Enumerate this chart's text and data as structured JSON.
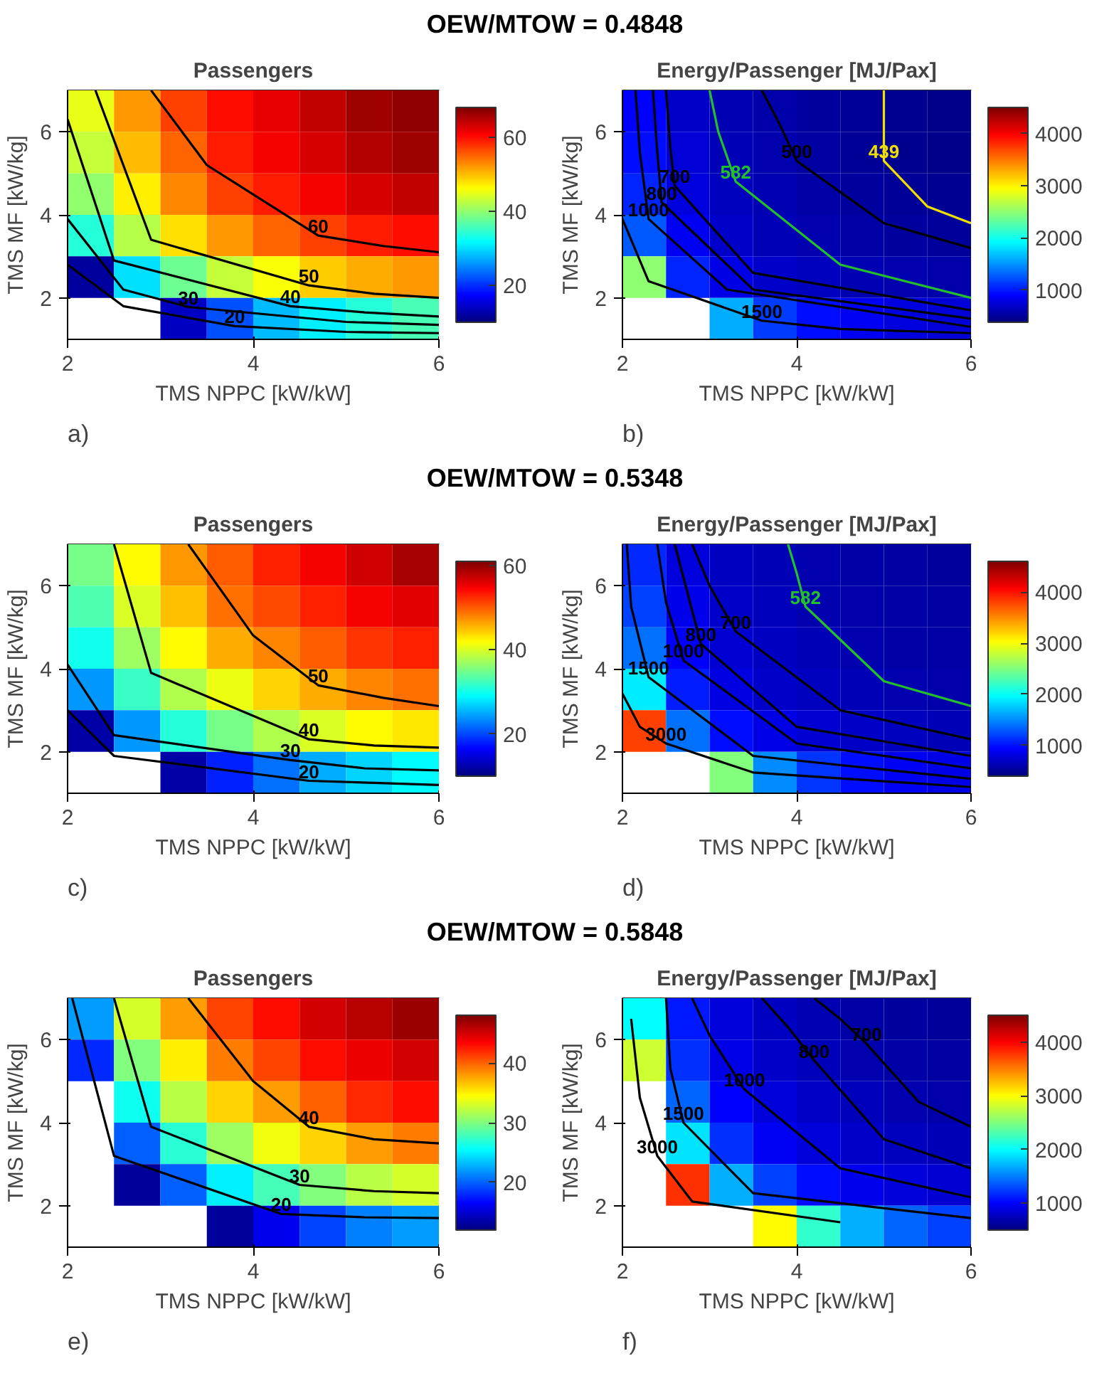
{
  "chart_data": [
    {
      "type": "heatmap",
      "subtitle": "OEW/MTOW = 0.4848",
      "title": "Passengers",
      "xlabel": "TMS NPPC [kW/kW]",
      "ylabel": "TMS MF [kW/kg]",
      "x": [
        2.25,
        2.75,
        3.25,
        3.75,
        4.25,
        4.75,
        5.25,
        5.75
      ],
      "y": [
        6.5,
        5.5,
        4.5,
        3.5,
        2.5,
        1.5
      ],
      "xlim": [
        2,
        6
      ],
      "ylim": [
        1,
        7
      ],
      "xticks": [
        2,
        4,
        6
      ],
      "yticks": [
        2,
        4,
        6
      ],
      "clim": [
        10,
        68
      ],
      "cticks": [
        20,
        40,
        60
      ],
      "cells": [
        [
          45,
          52,
          57,
          60,
          62,
          64,
          66,
          67
        ],
        [
          43,
          50,
          55,
          59,
          61,
          63,
          65,
          66
        ],
        [
          40,
          47,
          53,
          57,
          59,
          61,
          63,
          64
        ],
        [
          34,
          42,
          48,
          52,
          55,
          57,
          59,
          60
        ],
        [
          12,
          30,
          38,
          43,
          46,
          49,
          51,
          52
        ],
        [
          null,
          null,
          14,
          22,
          28,
          31,
          34,
          36
        ]
      ],
      "series": [
        {
          "type": "line",
          "name": "60",
          "color": "#000000",
          "x": [
            2.9,
            3.5,
            4.7,
            5.4,
            6
          ],
          "values": [
            7,
            5.2,
            3.5,
            3.25,
            3.1
          ]
        },
        {
          "type": "line",
          "name": "50",
          "color": "#000000",
          "x": [
            2.3,
            2.9,
            4.6,
            5.3,
            6
          ],
          "values": [
            7,
            3.4,
            2.3,
            2.1,
            2.0
          ]
        },
        {
          "type": "line",
          "name": "40",
          "color": "#000000",
          "x": [
            2.0,
            2.5,
            4.4,
            5.2,
            6
          ],
          "values": [
            6.3,
            2.9,
            1.8,
            1.65,
            1.55
          ]
        },
        {
          "type": "line",
          "name": "30",
          "color": "#000000",
          "x": [
            2.0,
            2.6,
            3.3,
            5.0,
            6
          ],
          "values": [
            3.9,
            2.2,
            1.78,
            1.42,
            1.35
          ]
        },
        {
          "type": "line",
          "name": "20",
          "color": "#000000",
          "x": [
            2.0,
            2.6,
            3.8,
            5.0,
            6
          ],
          "values": [
            2.8,
            1.8,
            1.32,
            1.18,
            1.15
          ]
        }
      ],
      "annotations": [
        "a)"
      ]
    },
    {
      "type": "heatmap",
      "title": "Energy/Passenger [MJ/Pax]",
      "xlabel": "TMS NPPC [kW/kW]",
      "ylabel": "TMS MF [kW/kg]",
      "x": [
        2.25,
        2.75,
        3.25,
        3.75,
        4.25,
        4.75,
        5.25,
        5.75
      ],
      "y": [
        6.5,
        5.5,
        4.5,
        3.5,
        2.5,
        1.5
      ],
      "xlim": [
        2,
        6
      ],
      "ylim": [
        1,
        7
      ],
      "xticks": [
        2,
        4,
        6
      ],
      "yticks": [
        2,
        4,
        6
      ],
      "clim": [
        380,
        4500
      ],
      "cticks": [
        1000,
        2000,
        3000,
        4000
      ],
      "cells": [
        [
          900,
          700,
          600,
          560,
          520,
          480,
          450,
          430
        ],
        [
          950,
          740,
          620,
          575,
          530,
          490,
          460,
          440
        ],
        [
          1050,
          780,
          650,
          590,
          550,
          510,
          480,
          465
        ],
        [
          1250,
          850,
          700,
          620,
          585,
          550,
          520,
          500
        ],
        [
          2500,
          1050,
          800,
          700,
          640,
          600,
          575,
          560
        ],
        [
          null,
          null,
          1600,
          1150,
          950,
          850,
          780,
          740
        ]
      ],
      "series": [
        {
          "type": "line",
          "name": "439",
          "color": "#f0e000",
          "x": [
            5.0,
            5.0,
            5.0,
            5.5,
            6
          ],
          "values": [
            7,
            6.2,
            5.3,
            4.2,
            3.8
          ]
        },
        {
          "type": "line",
          "name": "582",
          "color": "#22c02a",
          "x": [
            3.0,
            3.1,
            3.3,
            4.5,
            6
          ],
          "values": [
            7,
            6,
            4.8,
            2.8,
            2.0
          ]
        },
        {
          "type": "line",
          "name": "500",
          "color": "#000000",
          "x": [
            3.6,
            3.8,
            4.0,
            5,
            6
          ],
          "values": [
            7,
            6.2,
            5.3,
            3.8,
            3.2
          ]
        },
        {
          "type": "line",
          "name": "700",
          "color": "#000000",
          "x": [
            2.5,
            2.55,
            2.6,
            3.5,
            6
          ],
          "values": [
            7,
            5.6,
            4.7,
            2.6,
            1.7
          ]
        },
        {
          "type": "line",
          "name": "800",
          "color": "#000000",
          "x": [
            2.35,
            2.4,
            2.45,
            3.5,
            6
          ],
          "values": [
            7,
            5.5,
            4.3,
            2.2,
            1.5
          ]
        },
        {
          "type": "line",
          "name": "1000",
          "color": "#000000",
          "x": [
            2.15,
            2.2,
            2.3,
            3.2,
            6
          ],
          "values": [
            7,
            5.5,
            3.9,
            2.2,
            1.3
          ]
        },
        {
          "type": "line",
          "name": "1500",
          "color": "#000000",
          "x": [
            2.0,
            2.3,
            3.6,
            4.5,
            6
          ],
          "values": [
            3.9,
            2.4,
            1.45,
            1.25,
            1.15
          ]
        }
      ],
      "annotations": [
        "b)"
      ]
    },
    {
      "type": "heatmap",
      "subtitle": "OEW/MTOW = 0.5348",
      "title": "Passengers",
      "xlabel": "TMS NPPC [kW/kW]",
      "ylabel": "TMS MF [kW/kg]",
      "x": [
        2.25,
        2.75,
        3.25,
        3.75,
        4.25,
        4.75,
        5.25,
        5.75
      ],
      "y": [
        6.5,
        5.5,
        4.5,
        3.5,
        2.5,
        1.5
      ],
      "xlim": [
        2,
        6
      ],
      "ylim": [
        1,
        7
      ],
      "xticks": [
        2,
        4,
        6
      ],
      "yticks": [
        2,
        4,
        6
      ],
      "clim": [
        10,
        61
      ],
      "cticks": [
        20,
        40,
        60
      ],
      "cells": [
        [
          35,
          42,
          47,
          50,
          53,
          55,
          57,
          59
        ],
        [
          33,
          40,
          45,
          49,
          51,
          53,
          55,
          56
        ],
        [
          30,
          37,
          42,
          46,
          48,
          50,
          52,
          53
        ],
        [
          24,
          32,
          38,
          41,
          44,
          46,
          48,
          49
        ],
        [
          12,
          24,
          31,
          35,
          38,
          40,
          42,
          43
        ],
        [
          null,
          null,
          12,
          18,
          22,
          25,
          27,
          29
        ]
      ],
      "series": [
        {
          "type": "line",
          "name": "50",
          "color": "#000000",
          "x": [
            3.3,
            4.0,
            4.7,
            5.4,
            6
          ],
          "values": [
            7,
            4.8,
            3.6,
            3.3,
            3.1
          ]
        },
        {
          "type": "line",
          "name": "40",
          "color": "#000000",
          "x": [
            2.5,
            2.9,
            4.6,
            5.3,
            6
          ],
          "values": [
            7,
            3.9,
            2.3,
            2.15,
            2.1
          ]
        },
        {
          "type": "line",
          "name": "30",
          "color": "#000000",
          "x": [
            2.0,
            2.5,
            4.4,
            5.2,
            6
          ],
          "values": [
            4.1,
            2.4,
            1.8,
            1.6,
            1.55
          ]
        },
        {
          "type": "line",
          "name": "20",
          "color": "#000000",
          "x": [
            2.0,
            2.5,
            4.6,
            5.3,
            6
          ],
          "values": [
            3.0,
            1.9,
            1.3,
            1.25,
            1.2
          ]
        }
      ],
      "annotations": [
        "c)"
      ]
    },
    {
      "type": "heatmap",
      "title": "Energy/Passenger [MJ/Pax]",
      "xlabel": "TMS NPPC [kW/kW]",
      "ylabel": "TMS MF [kW/kg]",
      "x": [
        2.25,
        2.75,
        3.25,
        3.75,
        4.25,
        4.75,
        5.25,
        5.75
      ],
      "y": [
        6.5,
        5.5,
        4.5,
        3.5,
        2.5,
        1.5
      ],
      "xlim": [
        2,
        6
      ],
      "ylim": [
        1,
        7
      ],
      "xticks": [
        2,
        4,
        6
      ],
      "yticks": [
        2,
        4,
        6
      ],
      "clim": [
        400,
        4600
      ],
      "cticks": [
        1000,
        2000,
        3000,
        4000
      ],
      "cells": [
        [
          1100,
          800,
          690,
          630,
          600,
          575,
          555,
          540
        ],
        [
          1200,
          850,
          720,
          650,
          610,
          585,
          565,
          550
        ],
        [
          1400,
          920,
          760,
          680,
          630,
          600,
          580,
          565
        ],
        [
          1900,
          1050,
          820,
          720,
          670,
          630,
          605,
          585
        ],
        [
          3800,
          1400,
          980,
          830,
          750,
          700,
          665,
          640
        ],
        [
          null,
          null,
          2500,
          1500,
          1150,
          980,
          890,
          830
        ]
      ],
      "series": [
        {
          "type": "line",
          "name": "582",
          "color": "#22c02a",
          "x": [
            3.9,
            4.0,
            4.1,
            5,
            6
          ],
          "values": [
            7,
            6.3,
            5.5,
            3.7,
            3.1
          ]
        },
        {
          "type": "line",
          "name": "700",
          "color": "#000000",
          "x": [
            2.8,
            3.0,
            3.3,
            4.5,
            6
          ],
          "values": [
            7,
            6,
            4.9,
            3.0,
            2.3
          ]
        },
        {
          "type": "line",
          "name": "800",
          "color": "#000000",
          "x": [
            2.6,
            2.75,
            2.9,
            4,
            6
          ],
          "values": [
            7,
            5.8,
            4.6,
            2.6,
            1.9
          ]
        },
        {
          "type": "line",
          "name": "1000",
          "color": "#000000",
          "x": [
            2.4,
            2.5,
            2.7,
            4,
            6
          ],
          "values": [
            7,
            5.6,
            4.2,
            2.2,
            1.6
          ]
        },
        {
          "type": "line",
          "name": "1500",
          "color": "#000000",
          "x": [
            2.05,
            2.1,
            2.3,
            3.5,
            6
          ],
          "values": [
            7,
            5.5,
            3.8,
            1.9,
            1.35
          ]
        },
        {
          "type": "line",
          "name": "3000",
          "color": "#000000",
          "x": [
            2.0,
            2.2,
            2.5,
            3.5,
            6
          ],
          "values": [
            3.4,
            2.6,
            2.2,
            1.5,
            1.15
          ]
        }
      ],
      "annotations": [
        "d)"
      ]
    },
    {
      "type": "heatmap",
      "subtitle": "OEW/MTOW = 0.5848",
      "title": "Passengers",
      "xlabel": "TMS NPPC [kW/kW]",
      "ylabel": "TMS MF [kW/kg]",
      "x": [
        2.25,
        2.75,
        3.25,
        3.75,
        4.25,
        4.75,
        5.25,
        5.75
      ],
      "y": [
        6.5,
        5.5,
        4.5,
        3.5,
        2.5,
        1.5
      ],
      "xlim": [
        2,
        6
      ],
      "ylim": [
        1,
        7
      ],
      "xticks": [
        2,
        4,
        6
      ],
      "yticks": [
        2,
        4,
        6
      ],
      "clim": [
        12,
        48
      ],
      "cticks": [
        20,
        30,
        40
      ],
      "cells": [
        [
          22,
          33,
          38,
          41,
          43,
          45,
          46,
          47
        ],
        [
          18,
          30,
          35,
          39,
          41,
          43,
          44,
          45
        ],
        [
          null,
          26,
          32,
          36,
          38,
          40,
          42,
          43
        ],
        [
          null,
          20,
          27,
          31,
          34,
          36,
          38,
          39
        ],
        [
          null,
          13,
          20,
          25,
          28,
          30,
          32,
          33
        ],
        [
          null,
          null,
          null,
          13,
          16,
          19,
          21,
          22
        ]
      ],
      "series": [
        {
          "type": "line",
          "name": "40",
          "color": "#000000",
          "x": [
            3.3,
            4.0,
            4.6,
            5.3,
            6
          ],
          "values": [
            7,
            5.0,
            3.9,
            3.6,
            3.5
          ]
        },
        {
          "type": "line",
          "name": "30",
          "color": "#000000",
          "x": [
            2.5,
            2.9,
            4.5,
            5.3,
            6
          ],
          "values": [
            7,
            3.9,
            2.5,
            2.35,
            2.3
          ]
        },
        {
          "type": "line",
          "name": "20",
          "color": "#000000",
          "x": [
            2.05,
            2.5,
            4.3,
            5.2,
            6
          ],
          "values": [
            7,
            3.2,
            1.8,
            1.72,
            1.7
          ]
        }
      ],
      "annotations": [
        "e)"
      ]
    },
    {
      "type": "heatmap",
      "title": "Energy/Passenger [MJ/Pax]",
      "xlabel": "TMS NPPC [kW/kW]",
      "ylabel": "TMS MF [kW/kg]",
      "x": [
        2.25,
        2.75,
        3.25,
        3.75,
        4.25,
        4.75,
        5.25,
        5.75
      ],
      "y": [
        6.5,
        5.5,
        4.5,
        3.5,
        2.5,
        1.5
      ],
      "xlim": [
        2,
        6
      ],
      "ylim": [
        1,
        7
      ],
      "xticks": [
        2,
        4,
        6
      ],
      "yticks": [
        2,
        4,
        6
      ],
      "clim": [
        500,
        4500
      ],
      "cticks": [
        1000,
        2000,
        3000,
        4000
      ],
      "cells": [
        [
          2000,
          1100,
          870,
          770,
          710,
          670,
          640,
          620
        ],
        [
          2800,
          1200,
          920,
          810,
          740,
          700,
          670,
          650
        ],
        [
          null,
          1400,
          1000,
          860,
          790,
          740,
          700,
          680
        ],
        [
          null,
          1900,
          1200,
          980,
          870,
          800,
          760,
          730
        ],
        [
          null,
          3800,
          1700,
          1250,
          1050,
          940,
          870,
          830
        ],
        [
          null,
          null,
          null,
          3000,
          2200,
          1700,
          1400,
          1250
        ]
      ],
      "series": [
        {
          "type": "line",
          "name": "700",
          "color": "#000000",
          "x": [
            4.2,
            4.5,
            4.8,
            5.4,
            6
          ],
          "values": [
            7,
            6.5,
            5.9,
            4.5,
            3.9
          ]
        },
        {
          "type": "line",
          "name": "800",
          "color": "#000000",
          "x": [
            3.6,
            3.9,
            4.2,
            5,
            6
          ],
          "values": [
            7,
            6.3,
            5.5,
            3.6,
            2.9
          ]
        },
        {
          "type": "line",
          "name": "1000",
          "color": "#000000",
          "x": [
            2.8,
            3.0,
            3.4,
            4.5,
            6
          ],
          "values": [
            7,
            6.1,
            4.8,
            2.9,
            2.2
          ]
        },
        {
          "type": "line",
          "name": "1500",
          "color": "#000000",
          "x": [
            2.5,
            2.55,
            2.7,
            3.5,
            6
          ],
          "values": [
            7,
            5.3,
            4.0,
            2.3,
            1.7
          ]
        },
        {
          "type": "line",
          "name": "3000",
          "color": "#000000",
          "x": [
            2.1,
            2.2,
            2.4,
            2.8,
            4.5
          ],
          "values": [
            6.5,
            4.6,
            3.2,
            2.1,
            1.6
          ]
        }
      ],
      "annotations": [
        "f)"
      ]
    }
  ]
}
